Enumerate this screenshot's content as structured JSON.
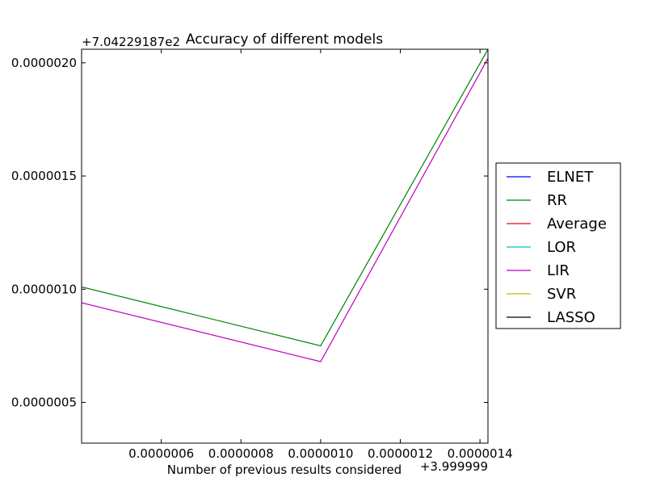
{
  "chart_data": {
    "type": "line",
    "title": "Accuracy of different models",
    "xlabel": "Number of previous results considered",
    "ylabel": "",
    "x_offset_text": "+3.999999",
    "y_offset_text": "+7.04229187e2",
    "x_ticks": [
      6e-07,
      8e-07,
      1e-06,
      1.2e-06,
      1.4e-06
    ],
    "x_tick_labels": [
      "0.0000006",
      "0.0000008",
      "0.0000010",
      "0.0000012",
      "0.0000014"
    ],
    "y_ticks": [
      5e-07,
      1e-06,
      1.5e-06,
      2e-06
    ],
    "y_tick_labels": [
      "0.0000005",
      "0.0000010",
      "0.0000015",
      "0.0000020"
    ],
    "xlim": [
      4e-07,
      1.42e-06
    ],
    "ylim": [
      3.2e-07,
      2.06e-06
    ],
    "legend_position": "right",
    "grid": false,
    "series": [
      {
        "name": "ELNET",
        "color": "#0000ff",
        "x": [],
        "y": []
      },
      {
        "name": "RR",
        "color": "#008000",
        "x": [
          4e-07,
          1e-06,
          1.42e-06
        ],
        "y": [
          1.01e-06,
          7.5e-07,
          2.06e-06
        ]
      },
      {
        "name": "Average",
        "color": "#ff0000",
        "x": [],
        "y": []
      },
      {
        "name": "LOR",
        "color": "#00bfbf",
        "x": [],
        "y": []
      },
      {
        "name": "LIR",
        "color": "#bf00bf",
        "x": [
          4e-07,
          1e-06,
          1.42e-06
        ],
        "y": [
          9.4e-07,
          6.8e-07,
          2.02e-06
        ]
      },
      {
        "name": "SVR",
        "color": "#bfbf00",
        "x": [],
        "y": []
      },
      {
        "name": "LASSO",
        "color": "#000000",
        "x": [],
        "y": []
      }
    ]
  }
}
